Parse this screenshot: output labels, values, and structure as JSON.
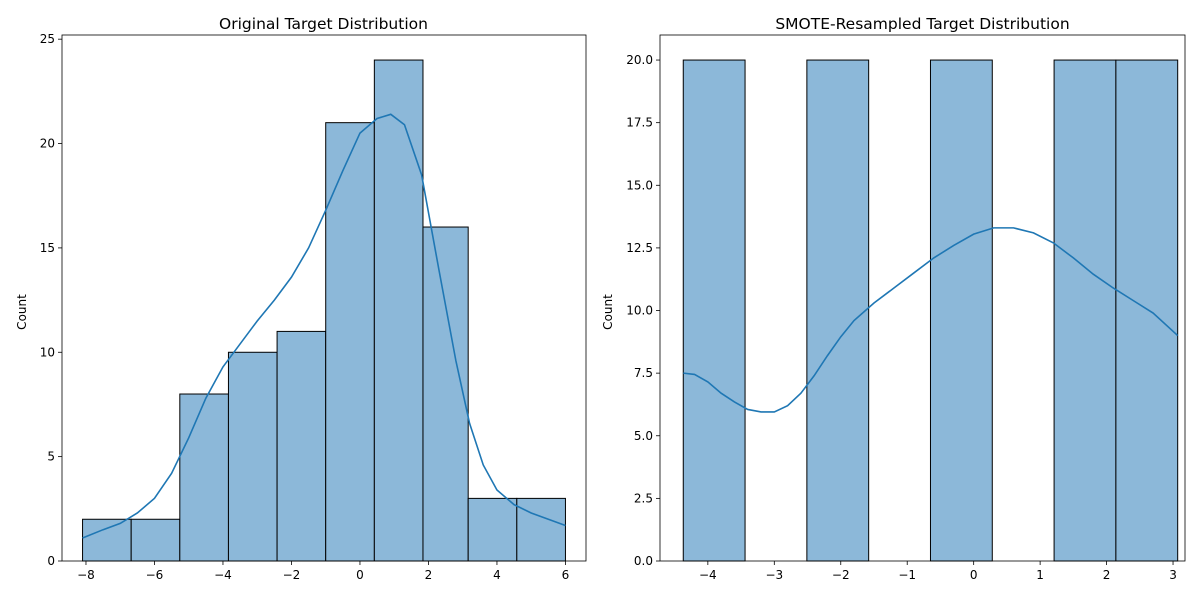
{
  "chart_data": [
    {
      "type": "bar",
      "title": "Original Target Distribution",
      "xlabel": "",
      "ylabel": "Count",
      "xlim": [
        -8.7,
        6.6
      ],
      "ylim": [
        0,
        25.2
      ],
      "xticks": [
        -8,
        -6,
        -4,
        -2,
        0,
        2,
        4,
        6
      ],
      "yticks": [
        0,
        5,
        10,
        15,
        20,
        25
      ],
      "ytick_labels": [
        "0",
        "5",
        "10",
        "15",
        "20",
        "25"
      ],
      "bin_edges": [
        -8.1,
        -6.68,
        -5.26,
        -3.84,
        -2.42,
        -1.0,
        0.42,
        1.84,
        3.16,
        4.58,
        6.0
      ],
      "values": [
        2,
        2,
        8,
        10,
        11,
        21,
        24,
        16,
        3,
        3
      ],
      "bar_color": "#8cb8d9",
      "edge_color": "#000000",
      "kde_color": "#1f77b4",
      "kde": {
        "x": [
          -8.1,
          -7.5,
          -7.0,
          -6.5,
          -6.0,
          -5.5,
          -5.0,
          -4.5,
          -4.0,
          -3.5,
          -3.0,
          -2.5,
          -2.0,
          -1.5,
          -1.0,
          -0.5,
          0.0,
          0.5,
          0.9,
          1.3,
          1.8,
          2.3,
          2.8,
          3.2,
          3.6,
          4.0,
          4.5,
          5.0,
          5.5,
          6.0
        ],
        "y": [
          1.1,
          1.5,
          1.8,
          2.3,
          3.0,
          4.2,
          5.9,
          7.8,
          9.3,
          10.4,
          11.5,
          12.5,
          13.6,
          15.0,
          16.8,
          18.7,
          20.5,
          21.2,
          21.4,
          20.9,
          18.5,
          14.0,
          9.6,
          6.6,
          4.6,
          3.4,
          2.7,
          2.3,
          2.0,
          1.7
        ]
      }
    },
    {
      "type": "bar",
      "title": "SMOTE-Resampled Target Distribution",
      "xlabel": "",
      "ylabel": "Count",
      "xlim": [
        -4.72,
        3.18
      ],
      "ylim": [
        0,
        21
      ],
      "xticks": [
        -4,
        -3,
        -2,
        -1,
        0,
        1,
        2,
        3
      ],
      "yticks": [
        0,
        2.5,
        5,
        7.5,
        10,
        12.5,
        15,
        17.5,
        20
      ],
      "ytick_labels": [
        "0.0",
        "2.5",
        "5.0",
        "7.5",
        "10.0",
        "12.5",
        "15.0",
        "17.5",
        "20.0"
      ],
      "bin_edges": [
        -4.37,
        -3.44,
        -2.51,
        -1.58,
        -0.65,
        0.28,
        1.21,
        2.14,
        3.07
      ],
      "values": [
        20,
        0,
        20,
        0,
        20,
        0,
        20,
        20
      ],
      "bar_color": "#8cb8d9",
      "edge_color": "#000000",
      "kde_color": "#1f77b4",
      "kde": {
        "x": [
          -4.37,
          -4.2,
          -4.0,
          -3.8,
          -3.6,
          -3.4,
          -3.2,
          -3.0,
          -2.8,
          -2.6,
          -2.4,
          -2.2,
          -2.0,
          -1.8,
          -1.5,
          -1.2,
          -0.9,
          -0.6,
          -0.3,
          0.0,
          0.3,
          0.6,
          0.9,
          1.2,
          1.5,
          1.8,
          2.1,
          2.4,
          2.7,
          3.07
        ],
        "y": [
          7.5,
          7.45,
          7.15,
          6.7,
          6.35,
          6.05,
          5.95,
          5.95,
          6.2,
          6.7,
          7.4,
          8.2,
          8.95,
          9.6,
          10.3,
          10.9,
          11.5,
          12.1,
          12.6,
          13.05,
          13.3,
          13.3,
          13.1,
          12.7,
          12.1,
          11.45,
          10.9,
          10.4,
          9.9,
          9.0
        ]
      }
    }
  ]
}
